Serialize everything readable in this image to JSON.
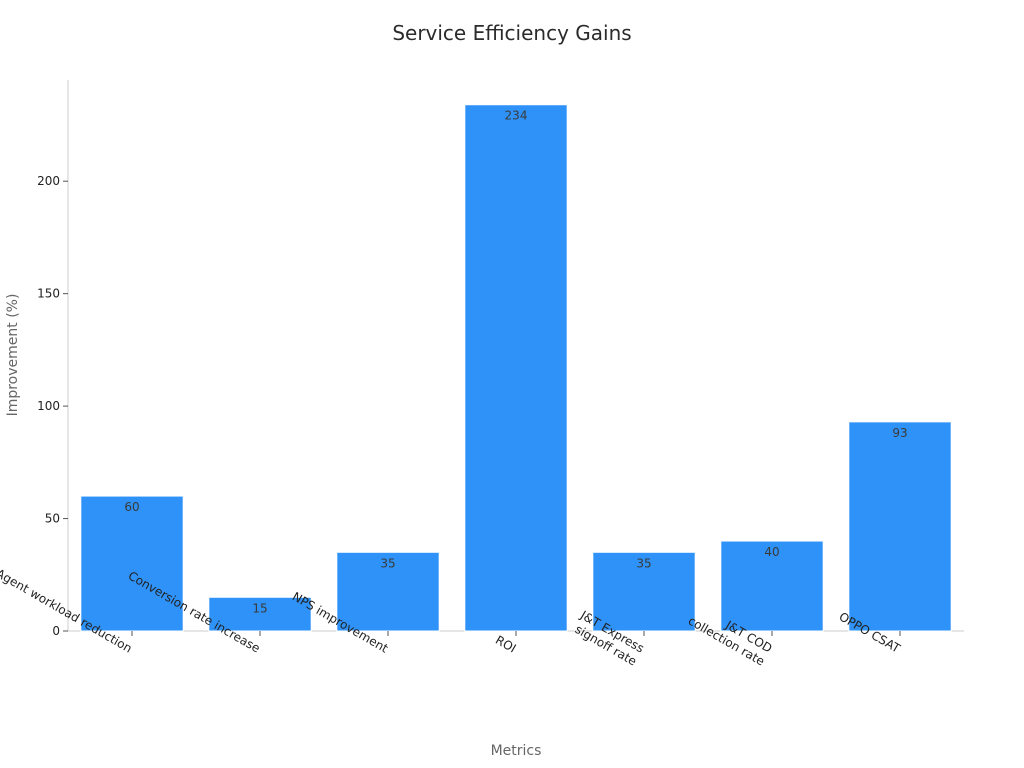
{
  "chart_data": {
    "type": "bar",
    "title": "Service Efficiency Gains",
    "xlabel": "Metrics",
    "ylabel": "Improvement (%)",
    "categories": [
      "Agent workload reduction",
      "Conversion rate increase",
      "NPS improvement",
      "ROI",
      "J&T Express signoff rate",
      "J&T COD collection rate",
      "OPPO CSAT"
    ],
    "category_lines": [
      [
        "Agent workload reduction"
      ],
      [
        "Conversion rate increase"
      ],
      [
        "NPS improvement"
      ],
      [
        "ROI"
      ],
      [
        "J&T Express",
        "signoff rate"
      ],
      [
        "J&T COD",
        "collection rate"
      ],
      [
        "OPPO CSAT"
      ]
    ],
    "values": [
      60,
      15,
      35,
      234,
      35,
      40,
      93
    ],
    "data_labels": [
      "60",
      "15",
      "35",
      "234",
      "35",
      "40",
      "93"
    ],
    "yticks": [
      0,
      50,
      100,
      150,
      200
    ],
    "ytick_labels": [
      "0",
      "50",
      "100",
      "150",
      "200"
    ],
    "ylim": [
      0,
      245
    ],
    "bar_color": "#2f92f8",
    "grid": false
  }
}
